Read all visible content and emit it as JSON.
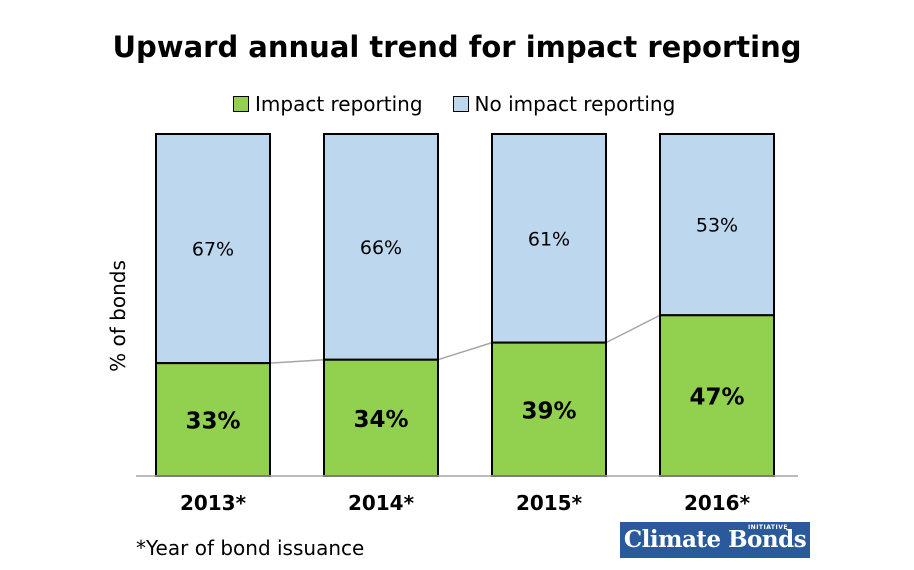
{
  "chart_data": {
    "type": "bar",
    "stacked": true,
    "title": "Upward annual trend for impact reporting",
    "ylabel": "% of bonds",
    "xlabel": "",
    "categories": [
      "2013*",
      "2014*",
      "2015*",
      "2016*"
    ],
    "series": [
      {
        "name": "Impact reporting",
        "color": "#92d050",
        "values": [
          33,
          34,
          39,
          47
        ],
        "labels": [
          "33%",
          "34%",
          "39%",
          "47%"
        ]
      },
      {
        "name": "No impact reporting",
        "color": "#bdd7ee",
        "values": [
          67,
          66,
          61,
          53
        ],
        "labels": [
          "67%",
          "66%",
          "61%",
          "53%"
        ]
      }
    ],
    "ylim": [
      0,
      100
    ],
    "legend_position": "top",
    "grid": false
  },
  "footnote": "*Year of bond issuance",
  "logo_text": "Climate Bonds",
  "logo_small_text": "INITIATIVE"
}
